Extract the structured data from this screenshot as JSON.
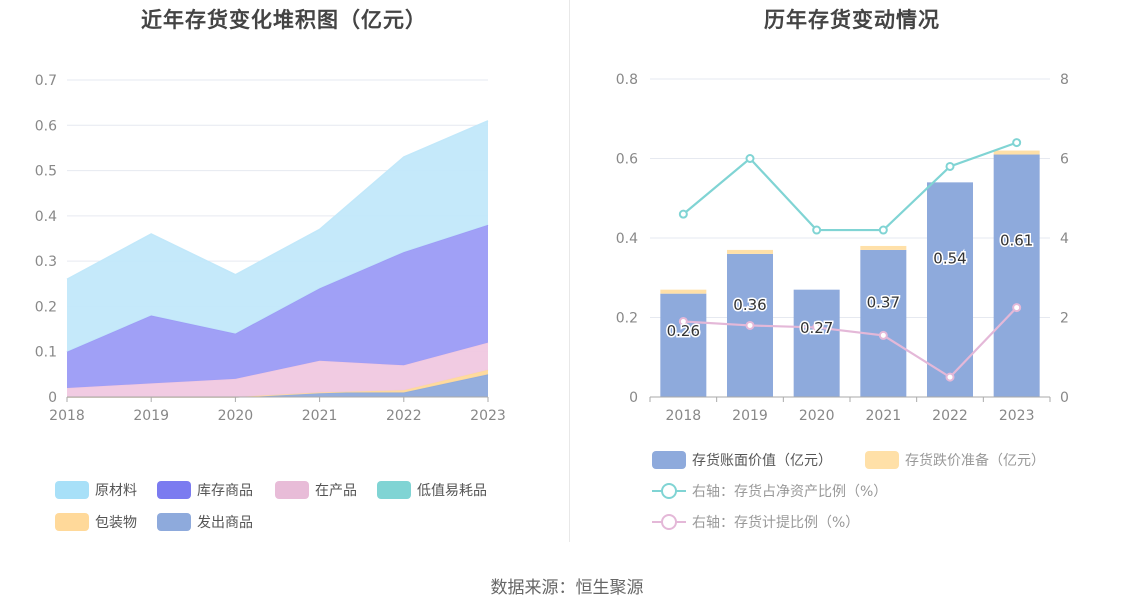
{
  "source": "数据来源：恒生聚源",
  "chart_data": [
    {
      "type": "area",
      "stacked": true,
      "title": "近年存货变化堆积图（亿元）",
      "x": [
        "2018",
        "2019",
        "2020",
        "2021",
        "2022",
        "2023"
      ],
      "ylim": [
        0,
        0.7
      ],
      "yticks": [
        "0",
        "0.1",
        "0.2",
        "0.3",
        "0.4",
        "0.5",
        "0.6",
        "0.7"
      ],
      "grid": true,
      "legend_position": "bottom",
      "series": [
        {
          "name": "发出商品",
          "color": "#8eaadc",
          "values": [
            0.0,
            0.0,
            0.0,
            0.01,
            0.01,
            0.05
          ]
        },
        {
          "name": "包装物",
          "color": "#ffd99a",
          "values": [
            0.0,
            0.0,
            0.0,
            0.0,
            0.005,
            0.01
          ]
        },
        {
          "name": "低值易耗品",
          "color": "#80d4d4",
          "values": [
            0.0,
            0.0,
            0.0,
            0.0,
            0.0,
            0.0
          ]
        },
        {
          "name": "在产品",
          "color": "#f0c8e0",
          "values": [
            0.02,
            0.03,
            0.04,
            0.07,
            0.055,
            0.06
          ]
        },
        {
          "name": "库存商品",
          "color": "#9b9bf5",
          "values": [
            0.08,
            0.15,
            0.1,
            0.16,
            0.25,
            0.26
          ]
        },
        {
          "name": "原材料",
          "color": "#c2e8fa",
          "values": [
            0.16,
            0.18,
            0.13,
            0.13,
            0.21,
            0.23
          ]
        }
      ],
      "legend_order": [
        "原材料",
        "库存商品",
        "在产品",
        "低值易耗品",
        "包装物",
        "发出商品"
      ],
      "legend_colors": {
        "原材料": "#a8e0f8",
        "库存商品": "#7b7bf0",
        "在产品": "#e8bcd8",
        "低值易耗品": "#80d4d4",
        "包装物": "#ffd99a",
        "发出商品": "#8eaadc"
      }
    },
    {
      "type": "bar",
      "stacked": true,
      "title": "历年存货变动情况",
      "categories": [
        "2018",
        "2019",
        "2020",
        "2021",
        "2022",
        "2023"
      ],
      "ylim_left": [
        0,
        0.8
      ],
      "yticks_left": [
        "0",
        "0.2",
        "0.4",
        "0.6",
        "0.8"
      ],
      "ylim_right": [
        0,
        8
      ],
      "yticks_right": [
        "0",
        "2",
        "4",
        "6",
        "8"
      ],
      "legend_position": "bottom",
      "series": [
        {
          "name": "存货账面价值（亿元）",
          "axis": "left",
          "kind": "bar",
          "color": "#8eaadc",
          "values": [
            0.26,
            0.36,
            0.27,
            0.37,
            0.54,
            0.61
          ],
          "labels": [
            "0.26",
            "0.36",
            "0.27",
            "0.37",
            "0.54",
            "0.61"
          ]
        },
        {
          "name": "存货跌价准备（亿元）",
          "axis": "left",
          "kind": "bar",
          "color": "#ffe0a8",
          "values": [
            0.01,
            0.01,
            0.0,
            0.01,
            0.0,
            0.01
          ]
        },
        {
          "name": "右轴：存货占净资产比例（%）",
          "axis": "right",
          "kind": "line",
          "color": "#80d4d4",
          "values": [
            4.6,
            6.0,
            4.2,
            4.2,
            5.8,
            6.4
          ]
        },
        {
          "name": "右轴：存货计提比例（%）",
          "axis": "right",
          "kind": "line",
          "color": "#e4b8d8",
          "values": [
            1.9,
            1.8,
            1.75,
            1.55,
            0.5,
            2.25
          ]
        }
      ]
    }
  ]
}
